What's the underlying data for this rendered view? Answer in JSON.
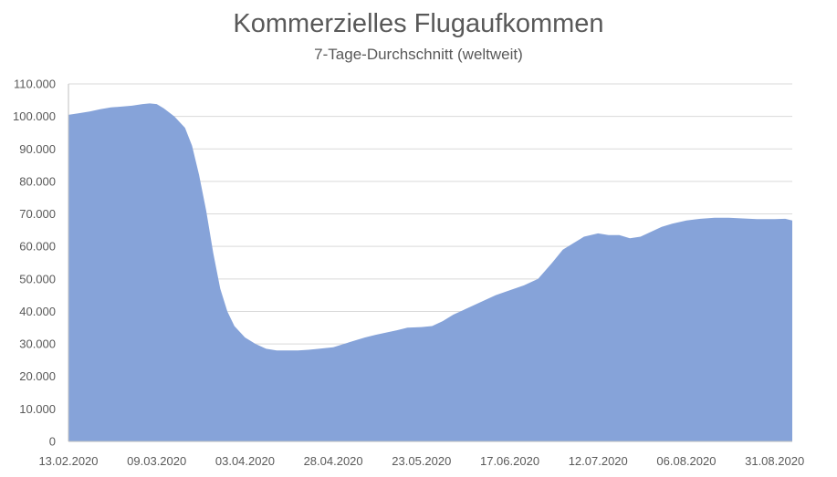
{
  "chart_data": {
    "type": "area",
    "title": "Kommerzielles Flugaufkommen",
    "subtitle": "7-Tage-Durchschnitt (weltweit)",
    "xlabel": "",
    "ylabel": "",
    "ylim": [
      0,
      110000
    ],
    "grid": true,
    "legend": "none",
    "color": "#86A3D9",
    "y_ticks": [
      0,
      10000,
      20000,
      30000,
      40000,
      50000,
      60000,
      70000,
      80000,
      90000,
      100000,
      110000
    ],
    "y_tick_labels": [
      "0",
      "10.000",
      "20.000",
      "30.000",
      "40.000",
      "50.000",
      "60.000",
      "70.000",
      "80.000",
      "90.000",
      "100.000",
      "110.000"
    ],
    "x_tick_labels": [
      "13.02.2020",
      "09.03.2020",
      "03.04.2020",
      "28.04.2020",
      "23.05.2020",
      "17.06.2020",
      "12.07.2020",
      "06.08.2020",
      "31.08.2020"
    ],
    "series": [
      {
        "x": [
          "13.02.2020",
          "16.02.2020",
          "19.02.2020",
          "22.02.2020",
          "25.02.2020",
          "28.02.2020",
          "02.03.2020",
          "05.03.2020",
          "07.03.2020",
          "09.03.2020",
          "11.03.2020",
          "14.03.2020",
          "17.03.2020",
          "19.03.2020",
          "21.03.2020",
          "23.03.2020",
          "25.03.2020",
          "27.03.2020",
          "29.03.2020",
          "31.03.2020",
          "03.04.2020",
          "06.04.2020",
          "09.04.2020",
          "12.04.2020",
          "15.04.2020",
          "18.04.2020",
          "21.04.2020",
          "24.04.2020",
          "28.04.2020",
          "01.05.2020",
          "04.05.2020",
          "07.05.2020",
          "10.05.2020",
          "13.05.2020",
          "16.05.2020",
          "19.05.2020",
          "23.05.2020",
          "26.05.2020",
          "29.05.2020",
          "01.06.2020",
          "05.06.2020",
          "09.06.2020",
          "13.06.2020",
          "17.06.2020",
          "21.06.2020",
          "25.06.2020",
          "29.06.2020",
          "02.07.2020",
          "05.07.2020",
          "08.07.2020",
          "12.07.2020",
          "15.07.2020",
          "18.07.2020",
          "21.07.2020",
          "24.07.2020",
          "27.07.2020",
          "30.07.2020",
          "02.08.2020",
          "06.08.2020",
          "10.08.2020",
          "14.08.2020",
          "18.08.2020",
          "22.08.2020",
          "26.08.2020",
          "31.08.2020",
          "03.09.2020",
          "05.09.2020"
        ],
        "values": [
          100500,
          101000,
          101500,
          102200,
          102800,
          103000,
          103300,
          103800,
          104000,
          103800,
          102500,
          100000,
          96500,
          91000,
          82000,
          71000,
          58000,
          47000,
          40000,
          35500,
          32000,
          30000,
          28500,
          28000,
          28000,
          28000,
          28200,
          28500,
          29000,
          30000,
          31000,
          32000,
          32800,
          33500,
          34200,
          35000,
          35200,
          35500,
          37000,
          39000,
          41000,
          43000,
          45000,
          46500,
          48000,
          50000,
          55000,
          59000,
          61000,
          63000,
          64000,
          63500,
          63500,
          62500,
          63000,
          64500,
          66000,
          67000,
          68000,
          68500,
          68800,
          68800,
          68600,
          68400,
          68400,
          68500,
          68000
        ]
      }
    ]
  }
}
